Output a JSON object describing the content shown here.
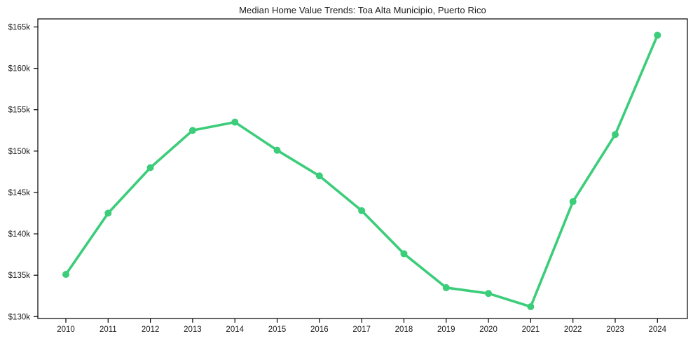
{
  "chart_data": {
    "type": "line",
    "title": "Median Home Value Trends: Toa Alta Municipio, Puerto Rico",
    "x": [
      "2010",
      "2011",
      "2012",
      "2013",
      "2014",
      "2015",
      "2016",
      "2017",
      "2018",
      "2019",
      "2020",
      "2021",
      "2022",
      "2023",
      "2024"
    ],
    "values": [
      135.1,
      142.5,
      148.0,
      152.5,
      153.5,
      150.1,
      147.0,
      142.8,
      137.6,
      133.5,
      132.8,
      131.2,
      143.9,
      152.0,
      164.0
    ],
    "ylim": [
      130,
      166
    ],
    "ytick_values": [
      130,
      135,
      140,
      145,
      150,
      155,
      160,
      165
    ],
    "ytick_labels": [
      "$130k",
      "$135k",
      "$140k",
      "$145k",
      "$150k",
      "$155k",
      "$160k",
      "$165k"
    ],
    "xlabel": "",
    "ylabel": "",
    "grid": false,
    "legend": false,
    "marker": "circle",
    "line_color": "#3bcd7a",
    "axis_color": "#000000",
    "text_color": "#1a1a1a",
    "background": "#ffffff"
  }
}
